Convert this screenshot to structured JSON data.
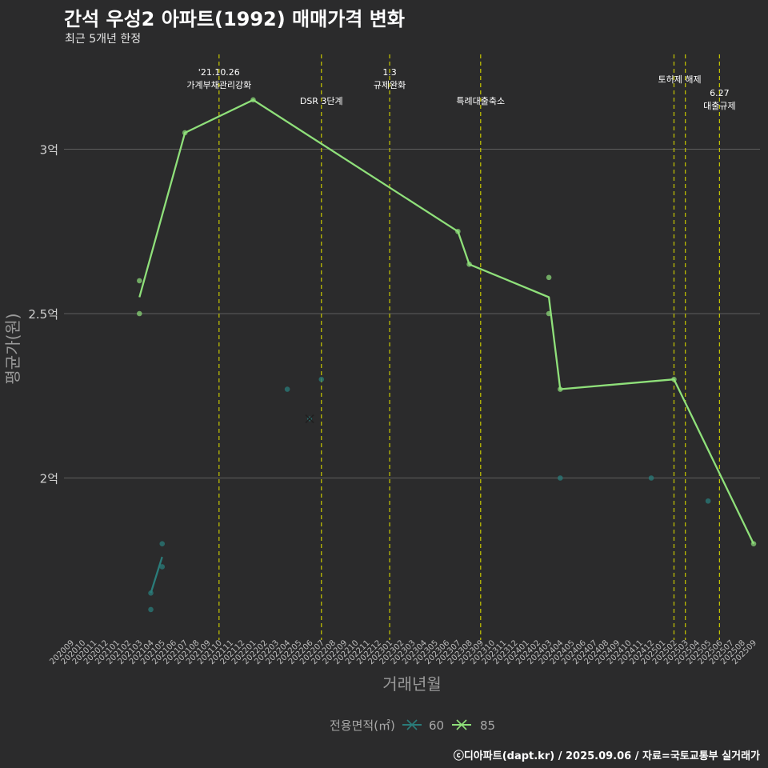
{
  "title": "간석 우성2 아파트(1992) 매매가격 변화",
  "subtitle": "최근 5개년 한정",
  "caption": "ⓒ디아파트(dapt.kr) / 2025.09.06 / 자료=국토교통부 실거래가",
  "colors": {
    "background": "#2b2b2c",
    "grid": "#5e5e5e",
    "vline": "#c8c800",
    "series60": "#2a7c7a",
    "series85": "#8fe07a"
  },
  "chart_data": {
    "type": "line",
    "xlabel": "거래년월",
    "ylabel": "평균가(원)",
    "ylim": [
      1.55,
      3.22
    ],
    "yticks": [
      {
        "value": 2.0,
        "label": "2억"
      },
      {
        "value": 2.5,
        "label": "2.5억"
      },
      {
        "value": 3.0,
        "label": "3억"
      }
    ],
    "categories": [
      "202009",
      "202010",
      "202011",
      "202012",
      "202101",
      "202102",
      "202103",
      "202104",
      "202105",
      "202106",
      "202107",
      "202108",
      "202109",
      "202110",
      "202111",
      "202112",
      "202201",
      "202202",
      "202203",
      "202204",
      "202205",
      "202206",
      "202207",
      "202208",
      "202209",
      "202210",
      "202211",
      "202212",
      "202301",
      "202302",
      "202303",
      "202304",
      "202305",
      "202306",
      "202307",
      "202308",
      "202309",
      "202310",
      "202311",
      "202312",
      "202401",
      "202402",
      "202403",
      "202404",
      "202405",
      "202406",
      "202407",
      "202408",
      "202409",
      "202410",
      "202411",
      "202412",
      "202501",
      "202502",
      "202503",
      "202504",
      "202505",
      "202506",
      "202507",
      "202508",
      "202509"
    ],
    "legend_title": "전용면적(㎡)",
    "series": [
      {
        "name": "60",
        "color": "#2a7c7a",
        "line": [
          {
            "x": "202104",
            "y": 1.65
          },
          {
            "x": "202105",
            "y": 1.76
          }
        ],
        "points": [
          {
            "x": "202104",
            "y": 1.6
          },
          {
            "x": "202104",
            "y": 1.65
          },
          {
            "x": "202105",
            "y": 1.73
          },
          {
            "x": "202105",
            "y": 1.8
          },
          {
            "x": "202204",
            "y": 2.27
          },
          {
            "x": "202207",
            "y": 2.3
          },
          {
            "x": "202404",
            "y": 2.0
          },
          {
            "x": "202412",
            "y": 2.0
          },
          {
            "x": "202505",
            "y": 1.93
          }
        ]
      },
      {
        "name": "85",
        "color": "#8fe07a",
        "line": [
          {
            "x": "202103",
            "y": 2.55
          },
          {
            "x": "202107",
            "y": 3.05
          },
          {
            "x": "202201",
            "y": 3.15
          },
          {
            "x": "202307",
            "y": 2.75
          },
          {
            "x": "202308",
            "y": 2.65
          },
          {
            "x": "202403",
            "y": 2.55
          },
          {
            "x": "202404",
            "y": 2.27
          },
          {
            "x": "202502",
            "y": 2.3
          },
          {
            "x": "202509",
            "y": 1.8
          }
        ],
        "points": [
          {
            "x": "202103",
            "y": 2.6
          },
          {
            "x": "202103",
            "y": 2.5
          },
          {
            "x": "202107",
            "y": 3.05
          },
          {
            "x": "202201",
            "y": 3.15
          },
          {
            "x": "202307",
            "y": 2.75
          },
          {
            "x": "202308",
            "y": 2.65
          },
          {
            "x": "202403",
            "y": 2.61
          },
          {
            "x": "202403",
            "y": 2.5
          },
          {
            "x": "202404",
            "y": 2.27
          },
          {
            "x": "202502",
            "y": 2.3
          },
          {
            "x": "202509",
            "y": 1.8
          }
        ]
      }
    ],
    "legend_marker": {
      "x": "202206",
      "y": 2.18
    },
    "events": [
      {
        "x": "202110",
        "lines": [
          "'21.10.26",
          "가계부채관리강화"
        ],
        "row": 0
      },
      {
        "x": "202207",
        "lines": [
          "DSR 3단계"
        ],
        "row": 2
      },
      {
        "x": "202301",
        "lines": [
          "1.3",
          "규제완화"
        ],
        "row": 0
      },
      {
        "x": "202309",
        "lines": [
          "특례대출축소"
        ],
        "row": 2
      },
      {
        "x": "202502",
        "lines": [
          "토허제 해제"
        ],
        "row": 1,
        "offset": "center-between"
      },
      {
        "x": "202503",
        "lines": [],
        "row": 1
      },
      {
        "x": "202506",
        "lines": [
          "6.27",
          "대출규제"
        ],
        "row": 2
      }
    ]
  }
}
